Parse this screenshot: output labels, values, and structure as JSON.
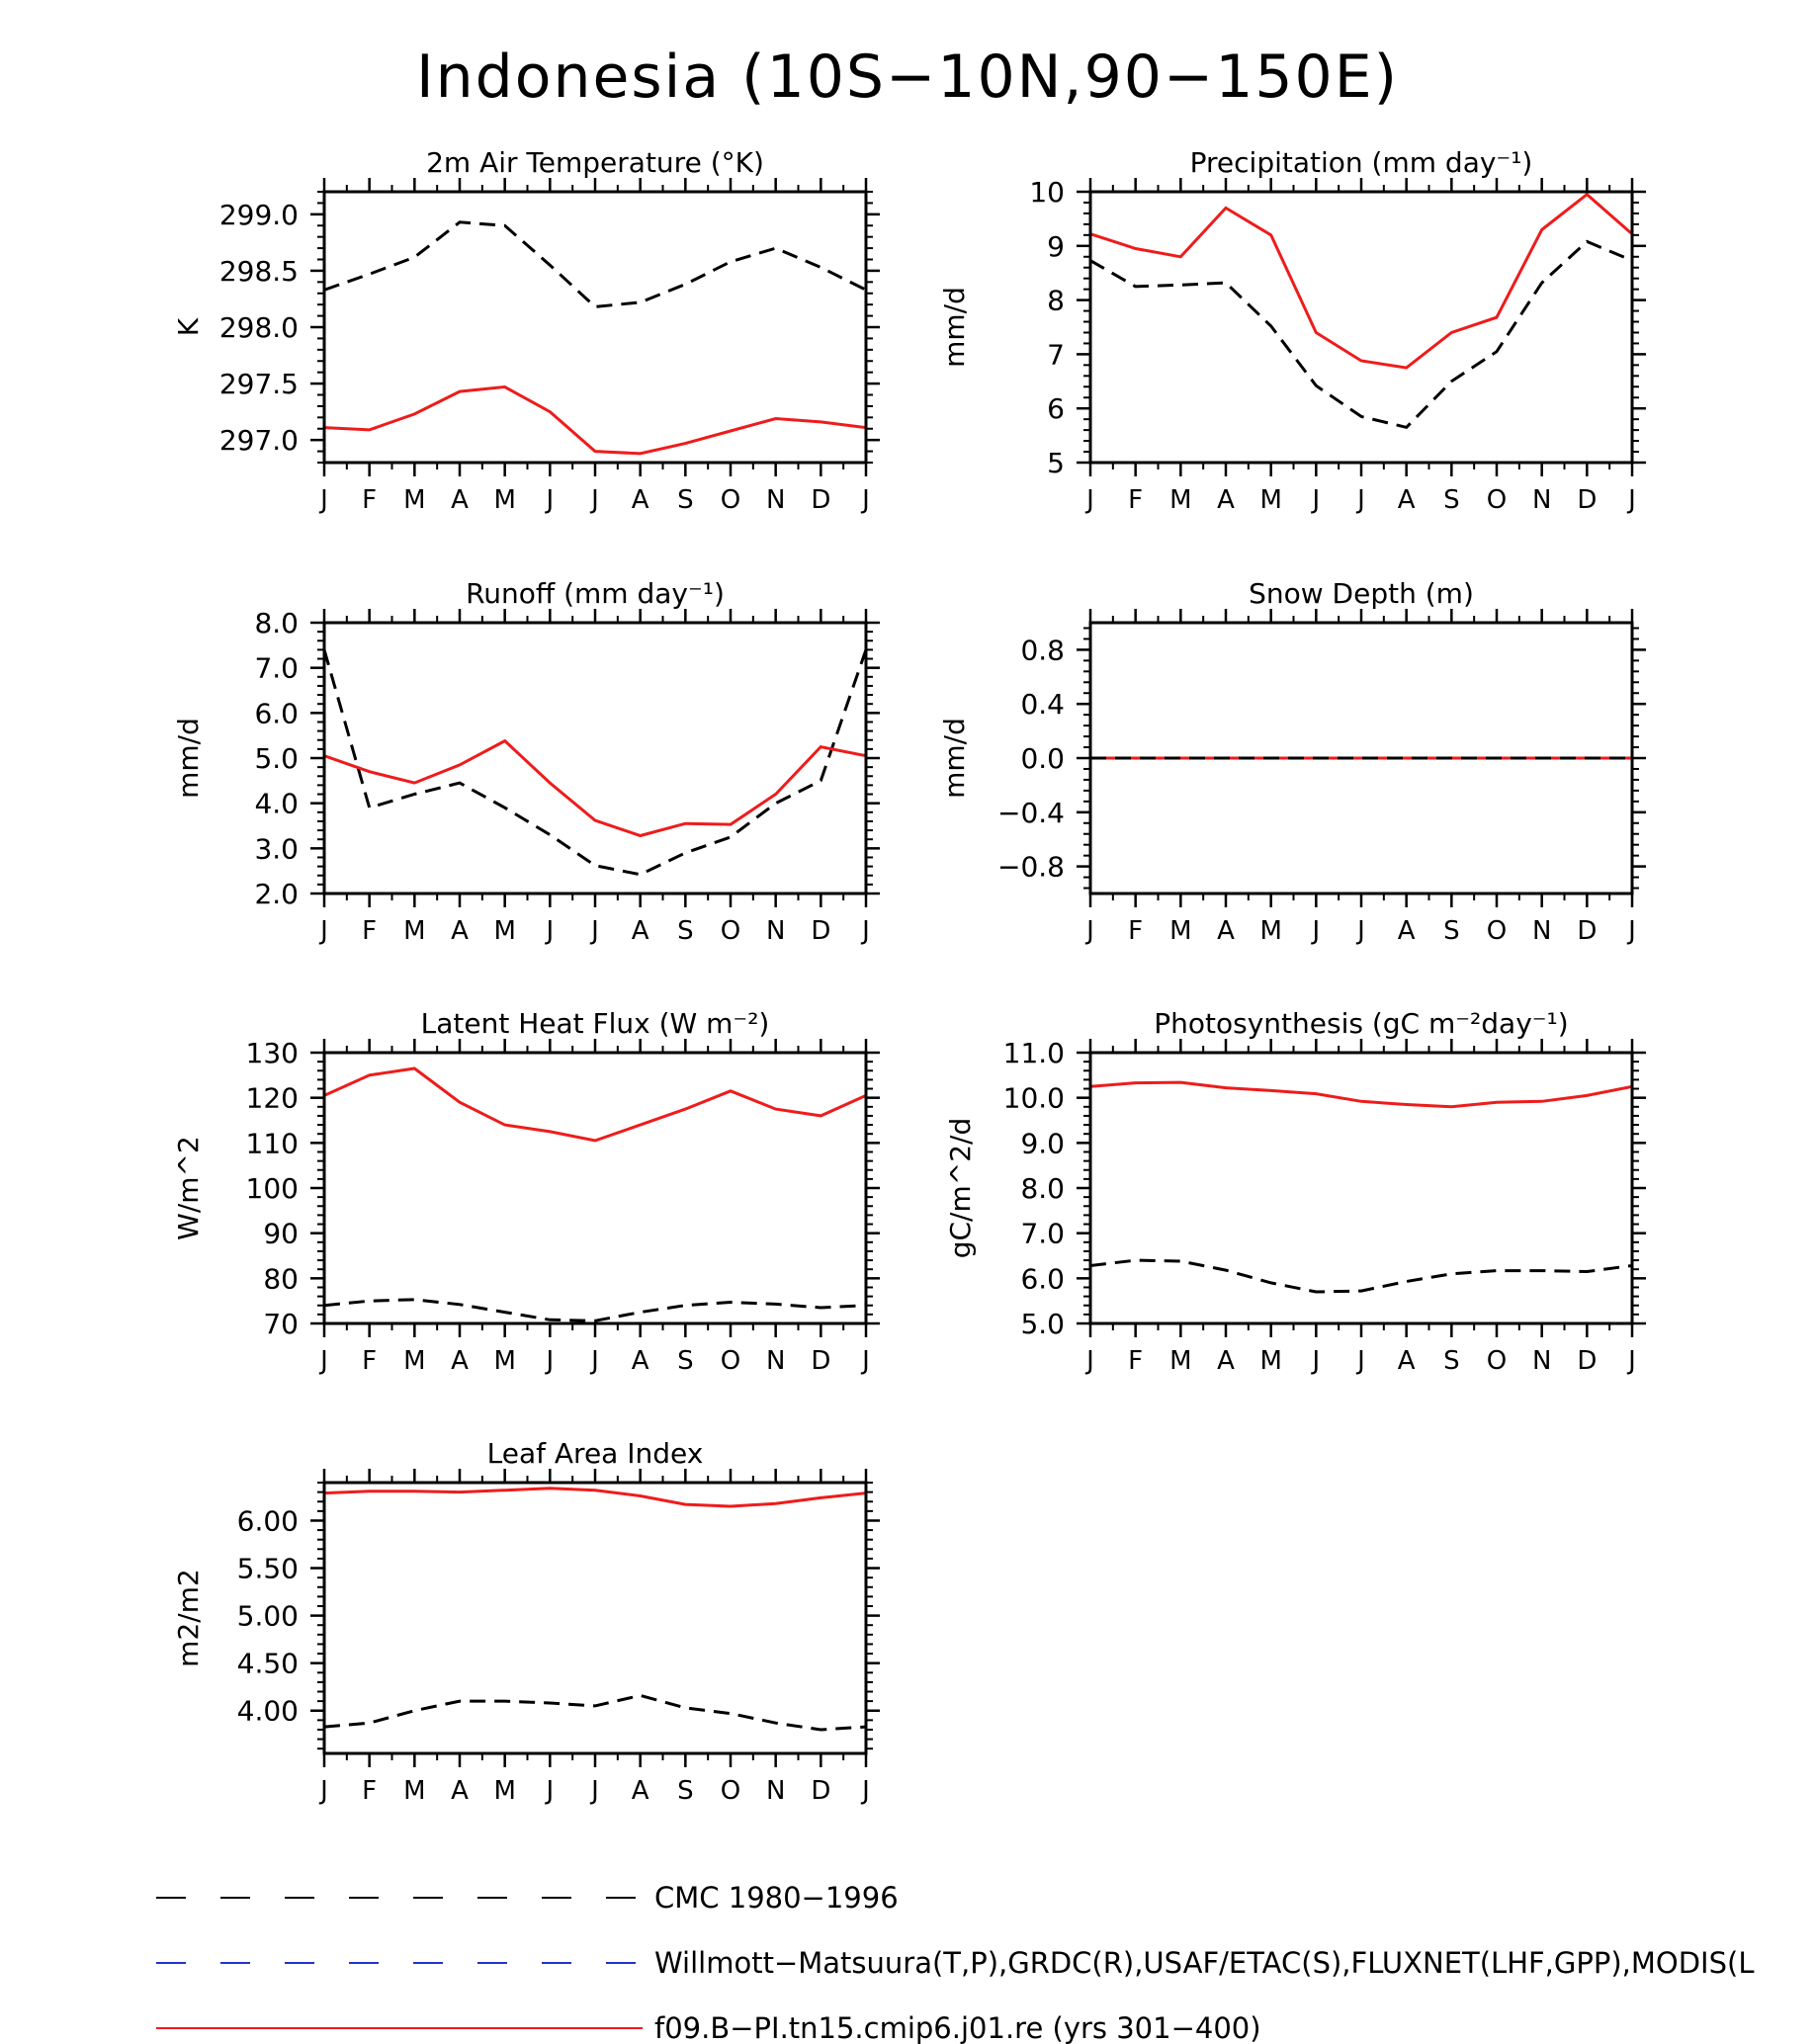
{
  "figure_title": "Indonesia (10S−10N,90−150E)",
  "months": [
    "J",
    "F",
    "M",
    "A",
    "M",
    "J",
    "J",
    "A",
    "S",
    "O",
    "N",
    "D",
    "J"
  ],
  "colors": {
    "obs": "#000000",
    "model": "#ee1c1c",
    "alt_obs": "#2233cc"
  },
  "legend": [
    {
      "label": "CMC 1980−1996",
      "color": "#000000",
      "style": "dashed"
    },
    {
      "label": "Willmott−Matsuura(T,P),GRDC(R),USAF/ETAC(S),FLUXNET(LHF,GPP),MODIS(L",
      "color": "#2233cc",
      "style": "dashed"
    },
    {
      "label": "f09.B−PI.tn15.cmip6.j01.re (yrs 301−400)",
      "color": "#ee1c1c",
      "style": "solid"
    }
  ],
  "chart_data": [
    {
      "type": "line",
      "title": "2m Air Temperature (°K)",
      "ylabel": "K",
      "ylim": [
        296.8,
        299.2
      ],
      "yticks": [
        297.0,
        297.5,
        298.0,
        298.5,
        299.0
      ],
      "ytick_labels": [
        "297.0",
        "297.5",
        "298.0",
        "298.5",
        "299.0"
      ],
      "series": [
        {
          "style": "dashed",
          "color": "#000000",
          "values": [
            298.33,
            298.47,
            298.62,
            298.93,
            298.9,
            298.55,
            298.18,
            298.22,
            298.38,
            298.58,
            298.7,
            298.53,
            298.33
          ]
        },
        {
          "style": "solid",
          "color": "#ee1c1c",
          "values": [
            297.11,
            297.09,
            297.23,
            297.43,
            297.47,
            297.25,
            296.9,
            296.88,
            296.97,
            297.08,
            297.19,
            297.16,
            297.11
          ]
        }
      ]
    },
    {
      "type": "line",
      "title": "Precipitation (mm day⁻¹)",
      "ylabel": "mm/d",
      "ylim": [
        5,
        10
      ],
      "yticks": [
        5,
        6,
        7,
        8,
        9,
        10
      ],
      "ytick_labels": [
        "5",
        "6",
        "7",
        "8",
        "9",
        "10"
      ],
      "series": [
        {
          "style": "dashed",
          "color": "#000000",
          "values": [
            8.73,
            8.25,
            8.28,
            8.32,
            7.52,
            6.42,
            5.85,
            5.65,
            6.5,
            7.05,
            8.32,
            9.08,
            8.73
          ]
        },
        {
          "style": "solid",
          "color": "#ee1c1c",
          "values": [
            9.22,
            8.95,
            8.8,
            9.7,
            9.2,
            7.4,
            6.88,
            6.75,
            7.4,
            7.68,
            9.3,
            9.95,
            9.22
          ]
        }
      ]
    },
    {
      "type": "line",
      "title": "Runoff (mm day⁻¹)",
      "ylabel": "mm/d",
      "ylim": [
        2,
        8
      ],
      "yticks": [
        2,
        3,
        4,
        5,
        6,
        7,
        8
      ],
      "ytick_labels": [
        "2.0",
        "3.0",
        "4.0",
        "5.0",
        "6.0",
        "7.0",
        "8.0"
      ],
      "series": [
        {
          "style": "dashed",
          "color": "#000000",
          "values": [
            7.4,
            3.9,
            4.2,
            4.45,
            3.9,
            3.3,
            2.62,
            2.42,
            2.9,
            3.25,
            4.0,
            4.5,
            7.4
          ]
        },
        {
          "style": "solid",
          "color": "#ee1c1c",
          "values": [
            5.05,
            4.7,
            4.45,
            4.85,
            5.38,
            4.45,
            3.62,
            3.28,
            3.55,
            3.53,
            4.2,
            5.25,
            5.05
          ]
        }
      ]
    },
    {
      "type": "line",
      "title": "Snow Depth (m)",
      "ylabel": "mm/d",
      "ylim": [
        -1,
        1
      ],
      "yticks": [
        -0.8,
        -0.4,
        0.0,
        0.4,
        0.8
      ],
      "ytick_labels": [
        "−0.8",
        "−0.4",
        "0.0",
        "0.4",
        "0.8"
      ],
      "series": [
        {
          "style": "solid",
          "color": "#ee1c1c",
          "values": [
            0,
            0,
            0,
            0,
            0,
            0,
            0,
            0,
            0,
            0,
            0,
            0,
            0
          ]
        },
        {
          "style": "dashed",
          "color": "#000000",
          "values": [
            0,
            0,
            0,
            0,
            0,
            0,
            0,
            0,
            0,
            0,
            0,
            0,
            0
          ]
        }
      ]
    },
    {
      "type": "line",
      "title": "Latent Heat Flux (W m⁻²)",
      "ylabel": "W/m^2",
      "ylim": [
        70,
        130
      ],
      "yticks": [
        70,
        80,
        90,
        100,
        110,
        120,
        130
      ],
      "ytick_labels": [
        "70",
        "80",
        "90",
        "100",
        "110",
        "120",
        "130"
      ],
      "series": [
        {
          "style": "dashed",
          "color": "#000000",
          "values": [
            74.0,
            75.0,
            75.3,
            74.2,
            72.5,
            70.8,
            70.6,
            72.5,
            74.0,
            74.7,
            74.3,
            73.5,
            74.0
          ]
        },
        {
          "style": "solid",
          "color": "#ee1c1c",
          "values": [
            120.5,
            125.0,
            126.5,
            119.0,
            114.0,
            112.5,
            110.5,
            114.0,
            117.5,
            121.5,
            117.5,
            116.0,
            120.5
          ]
        }
      ]
    },
    {
      "type": "line",
      "title": "Photosynthesis (gC m⁻²day⁻¹)",
      "ylabel": "gC/m^2/d",
      "ylim": [
        5,
        11
      ],
      "yticks": [
        5,
        6,
        7,
        8,
        9,
        10,
        11
      ],
      "ytick_labels": [
        "5.0",
        "6.0",
        "7.0",
        "8.0",
        "9.0",
        "10.0",
        "11.0"
      ],
      "series": [
        {
          "style": "dashed",
          "color": "#000000",
          "values": [
            6.28,
            6.4,
            6.38,
            6.18,
            5.9,
            5.7,
            5.72,
            5.93,
            6.1,
            6.17,
            6.17,
            6.15,
            6.28
          ]
        },
        {
          "style": "solid",
          "color": "#ee1c1c",
          "values": [
            10.25,
            10.33,
            10.34,
            10.22,
            10.16,
            10.09,
            9.92,
            9.85,
            9.8,
            9.9,
            9.92,
            10.05,
            10.25
          ]
        }
      ]
    },
    {
      "type": "line",
      "title": "Leaf Area Index",
      "ylabel": "m2/m2",
      "ylim": [
        3.55,
        6.4
      ],
      "yticks": [
        4.0,
        4.5,
        5.0,
        5.5,
        6.0
      ],
      "ytick_labels": [
        "4.00",
        "4.50",
        "5.00",
        "5.50",
        "6.00"
      ],
      "series": [
        {
          "style": "dashed",
          "color": "#000000",
          "values": [
            3.83,
            3.87,
            4.0,
            4.1,
            4.1,
            4.08,
            4.05,
            4.16,
            4.03,
            3.97,
            3.87,
            3.8,
            3.83
          ]
        },
        {
          "style": "solid",
          "color": "#ee1c1c",
          "values": [
            6.29,
            6.31,
            6.31,
            6.3,
            6.32,
            6.34,
            6.32,
            6.26,
            6.17,
            6.15,
            6.18,
            6.24,
            6.29
          ]
        }
      ]
    }
  ]
}
